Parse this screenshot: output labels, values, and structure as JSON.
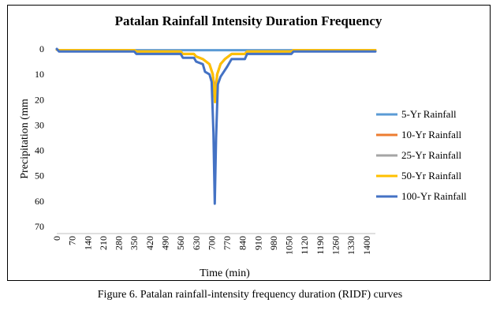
{
  "chart_data": {
    "type": "line",
    "title": "Patalan Rainfall Intensity Duration Frequency",
    "xlabel": "Time (min)",
    "ylabel": "Precipitation (mm",
    "y_inverted": true,
    "ylim": [
      0,
      70
    ],
    "yticks": [
      0,
      10,
      20,
      30,
      40,
      50,
      60,
      70
    ],
    "xlim": [
      0,
      1440
    ],
    "xticks": [
      0,
      70,
      140,
      210,
      280,
      350,
      420,
      490,
      560,
      630,
      700,
      770,
      840,
      910,
      980,
      1050,
      1120,
      1190,
      1260,
      1330,
      1400
    ],
    "x_tick_rotation": -90,
    "legend_position": "right",
    "series": [
      {
        "name": "5-Yr Rainfall",
        "color": "#5B9BD5",
        "points": [
          [
            0,
            0.3
          ],
          [
            10,
            0.5
          ],
          [
            1440,
            0.5
          ]
        ]
      },
      {
        "name": "10-Yr Rainfall",
        "color": "#ED7D31",
        "points": [
          [
            0,
            0.3
          ],
          [
            10,
            0.5
          ],
          [
            350,
            0.5
          ],
          [
            360,
            1
          ],
          [
            560,
            1
          ],
          [
            570,
            2
          ],
          [
            620,
            2
          ],
          [
            630,
            3
          ],
          [
            660,
            4
          ],
          [
            690,
            6
          ],
          [
            705,
            10
          ],
          [
            715,
            17
          ],
          [
            725,
            10
          ],
          [
            740,
            6
          ],
          [
            760,
            4
          ],
          [
            790,
            2
          ],
          [
            850,
            2
          ],
          [
            860,
            1
          ],
          [
            1060,
            1
          ],
          [
            1070,
            0.5
          ],
          [
            1440,
            0.5
          ]
        ]
      },
      {
        "name": "25-Yr Rainfall",
        "color": "#A5A5A5",
        "points": [
          [
            0,
            0.3
          ],
          [
            10,
            0.5
          ],
          [
            350,
            0.5
          ],
          [
            360,
            1
          ],
          [
            560,
            1
          ],
          [
            570,
            2
          ],
          [
            620,
            2
          ],
          [
            630,
            3
          ],
          [
            660,
            4
          ],
          [
            690,
            6
          ],
          [
            705,
            10
          ],
          [
            715,
            19
          ],
          [
            725,
            10
          ],
          [
            740,
            6
          ],
          [
            760,
            4
          ],
          [
            790,
            2
          ],
          [
            850,
            2
          ],
          [
            860,
            1
          ],
          [
            1060,
            1
          ],
          [
            1070,
            0.5
          ],
          [
            1440,
            0.5
          ]
        ]
      },
      {
        "name": "50-Yr Rainfall",
        "color": "#FFC000",
        "points": [
          [
            0,
            0.3
          ],
          [
            10,
            0.5
          ],
          [
            350,
            0.5
          ],
          [
            360,
            1
          ],
          [
            560,
            1
          ],
          [
            570,
            2
          ],
          [
            620,
            2
          ],
          [
            630,
            3
          ],
          [
            660,
            4
          ],
          [
            690,
            6
          ],
          [
            705,
            10
          ],
          [
            715,
            21
          ],
          [
            725,
            10
          ],
          [
            740,
            6
          ],
          [
            760,
            4
          ],
          [
            790,
            2
          ],
          [
            850,
            2
          ],
          [
            860,
            1
          ],
          [
            1060,
            1
          ],
          [
            1070,
            0.5
          ],
          [
            1440,
            0.5
          ]
        ]
      },
      {
        "name": "100-Yr Rainfall",
        "color": "#4472C4",
        "points": [
          [
            0,
            0
          ],
          [
            10,
            1
          ],
          [
            350,
            1
          ],
          [
            360,
            2
          ],
          [
            560,
            2
          ],
          [
            570,
            3.5
          ],
          [
            620,
            3.5
          ],
          [
            630,
            5
          ],
          [
            660,
            6
          ],
          [
            670,
            9
          ],
          [
            690,
            10
          ],
          [
            700,
            13
          ],
          [
            708,
            33
          ],
          [
            714,
            61
          ],
          [
            720,
            35
          ],
          [
            728,
            14
          ],
          [
            740,
            11
          ],
          [
            755,
            9
          ],
          [
            770,
            7
          ],
          [
            790,
            4
          ],
          [
            850,
            4
          ],
          [
            860,
            2
          ],
          [
            1060,
            2
          ],
          [
            1070,
            1
          ],
          [
            1440,
            1
          ]
        ]
      }
    ]
  },
  "caption": "Figure 6. Patalan rainfall-intensity frequency duration (RIDF) curves"
}
